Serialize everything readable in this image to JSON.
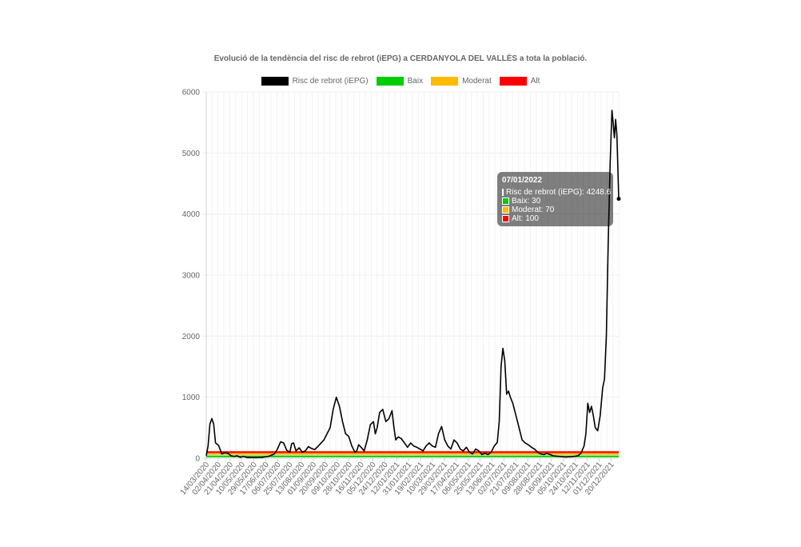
{
  "chart_data": {
    "type": "line",
    "title": "Evolució de la tendència del risc de rebrot (iEPG) a CERDANYOLA DEL VALLÈS a tota la població.",
    "ylim": [
      0,
      6000
    ],
    "yticks": [
      0,
      1000,
      2000,
      3000,
      4000,
      5000,
      6000
    ],
    "grid": true,
    "legend_position": "top",
    "xtick_labels": [
      "14/03/2020",
      "02/04/2020",
      "21/04/2020",
      "10/05/2020",
      "29/05/2020",
      "17/06/2020",
      "06/07/2020",
      "25/07/2020",
      "13/08/2020",
      "01/09/2020",
      "20/09/2020",
      "09/10/2020",
      "28/10/2020",
      "16/11/2020",
      "05/12/2020",
      "24/12/2020",
      "12/01/2021",
      "31/01/2021",
      "19/02/2021",
      "10/03/2021",
      "29/03/2021",
      "17/04/2021",
      "06/05/2021",
      "25/05/2021",
      "13/06/2021",
      "02/07/2021",
      "21/07/2021",
      "09/08/2021",
      "28/08/2021",
      "16/09/2021",
      "05/10/2021",
      "24/10/2021",
      "12/11/2021",
      "01/12/2021",
      "20/12/2021"
    ],
    "x_day_span": 666,
    "series": [
      {
        "name": "Risc de rebrot (iEPG)",
        "color": "#000000",
        "points": [
          [
            0,
            40
          ],
          [
            3,
            200
          ],
          [
            6,
            560
          ],
          [
            9,
            650
          ],
          [
            12,
            560
          ],
          [
            15,
            250
          ],
          [
            20,
            210
          ],
          [
            25,
            70
          ],
          [
            30,
            90
          ],
          [
            35,
            80
          ],
          [
            40,
            40
          ],
          [
            45,
            30
          ],
          [
            50,
            40
          ],
          [
            55,
            15
          ],
          [
            60,
            30
          ],
          [
            65,
            15
          ],
          [
            70,
            10
          ],
          [
            80,
            10
          ],
          [
            90,
            15
          ],
          [
            100,
            30
          ],
          [
            110,
            70
          ],
          [
            115,
            150
          ],
          [
            120,
            270
          ],
          [
            125,
            250
          ],
          [
            130,
            130
          ],
          [
            135,
            100
          ],
          [
            138,
            240
          ],
          [
            141,
            250
          ],
          [
            145,
            120
          ],
          [
            150,
            170
          ],
          [
            155,
            100
          ],
          [
            160,
            120
          ],
          [
            165,
            190
          ],
          [
            170,
            160
          ],
          [
            175,
            140
          ],
          [
            180,
            190
          ],
          [
            190,
            300
          ],
          [
            200,
            500
          ],
          [
            205,
            800
          ],
          [
            210,
            1000
          ],
          [
            215,
            850
          ],
          [
            220,
            600
          ],
          [
            225,
            400
          ],
          [
            230,
            360
          ],
          [
            235,
            200
          ],
          [
            240,
            100
          ],
          [
            243,
            120
          ],
          [
            246,
            220
          ],
          [
            250,
            180
          ],
          [
            255,
            120
          ],
          [
            260,
            300
          ],
          [
            265,
            550
          ],
          [
            270,
            600
          ],
          [
            273,
            400
          ],
          [
            276,
            500
          ],
          [
            280,
            750
          ],
          [
            285,
            800
          ],
          [
            290,
            600
          ],
          [
            295,
            650
          ],
          [
            300,
            780
          ],
          [
            303,
            500
          ],
          [
            306,
            300
          ],
          [
            310,
            350
          ],
          [
            315,
            320
          ],
          [
            320,
            250
          ],
          [
            325,
            180
          ],
          [
            330,
            250
          ],
          [
            335,
            200
          ],
          [
            340,
            180
          ],
          [
            345,
            150
          ],
          [
            350,
            120
          ],
          [
            355,
            200
          ],
          [
            360,
            250
          ],
          [
            365,
            200
          ],
          [
            370,
            180
          ],
          [
            375,
            400
          ],
          [
            380,
            520
          ],
          [
            385,
            300
          ],
          [
            390,
            200
          ],
          [
            395,
            150
          ],
          [
            400,
            300
          ],
          [
            405,
            250
          ],
          [
            410,
            150
          ],
          [
            415,
            120
          ],
          [
            420,
            180
          ],
          [
            425,
            100
          ],
          [
            430,
            70
          ],
          [
            435,
            150
          ],
          [
            440,
            120
          ],
          [
            445,
            60
          ],
          [
            450,
            80
          ],
          [
            455,
            60
          ],
          [
            460,
            100
          ],
          [
            465,
            200
          ],
          [
            470,
            260
          ],
          [
            473,
            600
          ],
          [
            476,
            1500
          ],
          [
            479,
            1800
          ],
          [
            482,
            1600
          ],
          [
            485,
            1050
          ],
          [
            488,
            1100
          ],
          [
            491,
            1000
          ],
          [
            495,
            900
          ],
          [
            500,
            700
          ],
          [
            505,
            500
          ],
          [
            510,
            300
          ],
          [
            515,
            250
          ],
          [
            520,
            220
          ],
          [
            525,
            180
          ],
          [
            530,
            150
          ],
          [
            535,
            100
          ],
          [
            540,
            70
          ],
          [
            545,
            60
          ],
          [
            550,
            80
          ],
          [
            555,
            60
          ],
          [
            560,
            40
          ],
          [
            570,
            30
          ],
          [
            580,
            20
          ],
          [
            590,
            25
          ],
          [
            600,
            40
          ],
          [
            605,
            80
          ],
          [
            610,
            200
          ],
          [
            613,
            400
          ],
          [
            616,
            900
          ],
          [
            619,
            750
          ],
          [
            622,
            850
          ],
          [
            625,
            700
          ],
          [
            628,
            500
          ],
          [
            632,
            450
          ],
          [
            636,
            700
          ],
          [
            640,
            1150
          ],
          [
            643,
            1300
          ],
          [
            646,
            2000
          ],
          [
            649,
            3500
          ],
          [
            652,
            4800
          ],
          [
            655,
            5700
          ],
          [
            657,
            5500
          ],
          [
            659,
            5250
          ],
          [
            661,
            5550
          ],
          [
            663,
            5300
          ],
          [
            666,
            4250
          ]
        ]
      },
      {
        "name": "Baix",
        "color": "#00cc00",
        "value": 30
      },
      {
        "name": "Moderat",
        "color": "#ffbb00",
        "value": 70
      },
      {
        "name": "Alt",
        "color": "#ff0000",
        "value": 100
      }
    ]
  },
  "tooltip": {
    "title": "07/01/2022",
    "rows": [
      {
        "label": "Risc de rebrot (iEPG): 4248.6",
        "color": "#000000"
      },
      {
        "label": "Baix: 30",
        "color": "#00cc00"
      },
      {
        "label": "Moderat: 70",
        "color": "#ffbb00"
      },
      {
        "label": "Alt: 100",
        "color": "#ff0000"
      }
    ]
  }
}
